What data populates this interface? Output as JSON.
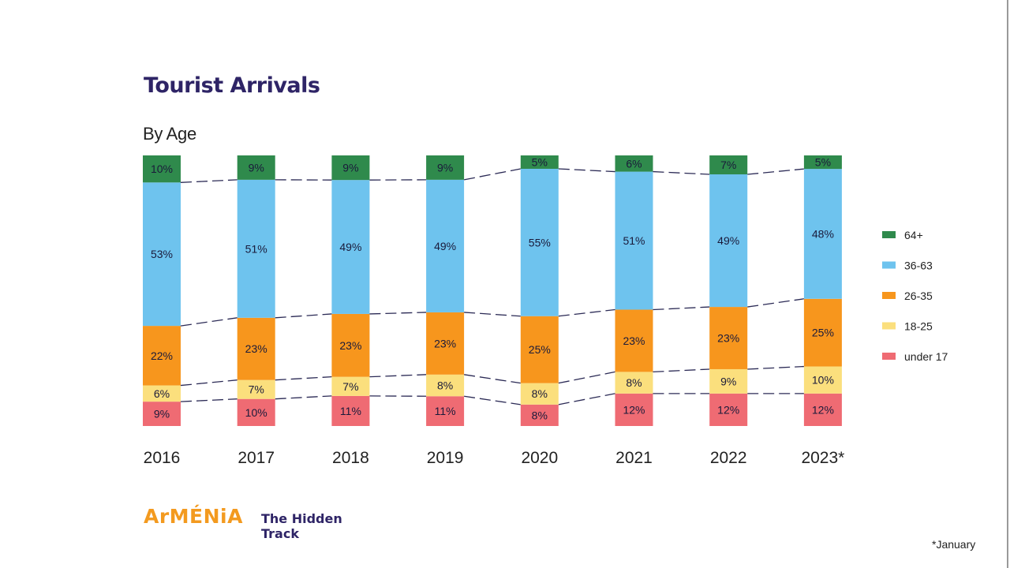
{
  "title": "Tourist Arrivals",
  "subtitle": "By Age",
  "footnote": "*January",
  "brand": {
    "logo": "ArMÉNiA",
    "tagline_line1": "The Hidden",
    "tagline_line2": "Track",
    "logo_color": "#f39a1f",
    "tagline_color": "#2e2466"
  },
  "chart_data": {
    "type": "bar",
    "stacked": true,
    "title": "Tourist Arrivals",
    "subtitle": "By Age",
    "xlabel": "",
    "ylabel": "",
    "ylim": [
      0,
      100
    ],
    "unit": "%",
    "legend_position": "right",
    "connector_lines": "dashed lines linking segment boundaries between adjacent bars",
    "categories": [
      "2016",
      "2017",
      "2018",
      "2019",
      "2020",
      "2021",
      "2022",
      "2023*"
    ],
    "series": [
      {
        "name": "under 17",
        "color": "#ef6b73",
        "values": [
          9,
          10,
          11,
          11,
          8,
          12,
          12,
          12
        ]
      },
      {
        "name": "18-25",
        "color": "#fbdf7d",
        "values": [
          6,
          7,
          7,
          8,
          8,
          8,
          9,
          10
        ]
      },
      {
        "name": "26-35",
        "color": "#f7961d",
        "values": [
          22,
          23,
          23,
          23,
          25,
          23,
          23,
          25
        ]
      },
      {
        "name": "36-63",
        "color": "#6ec3ee",
        "values": [
          53,
          51,
          49,
          49,
          55,
          51,
          49,
          48
        ]
      },
      {
        "name": "64+",
        "color": "#2f8a4c",
        "values": [
          10,
          9,
          9,
          9,
          5,
          6,
          7,
          5
        ]
      }
    ],
    "legend": [
      "64+",
      "36-63",
      "26-35",
      "18-25",
      "under 17"
    ]
  }
}
